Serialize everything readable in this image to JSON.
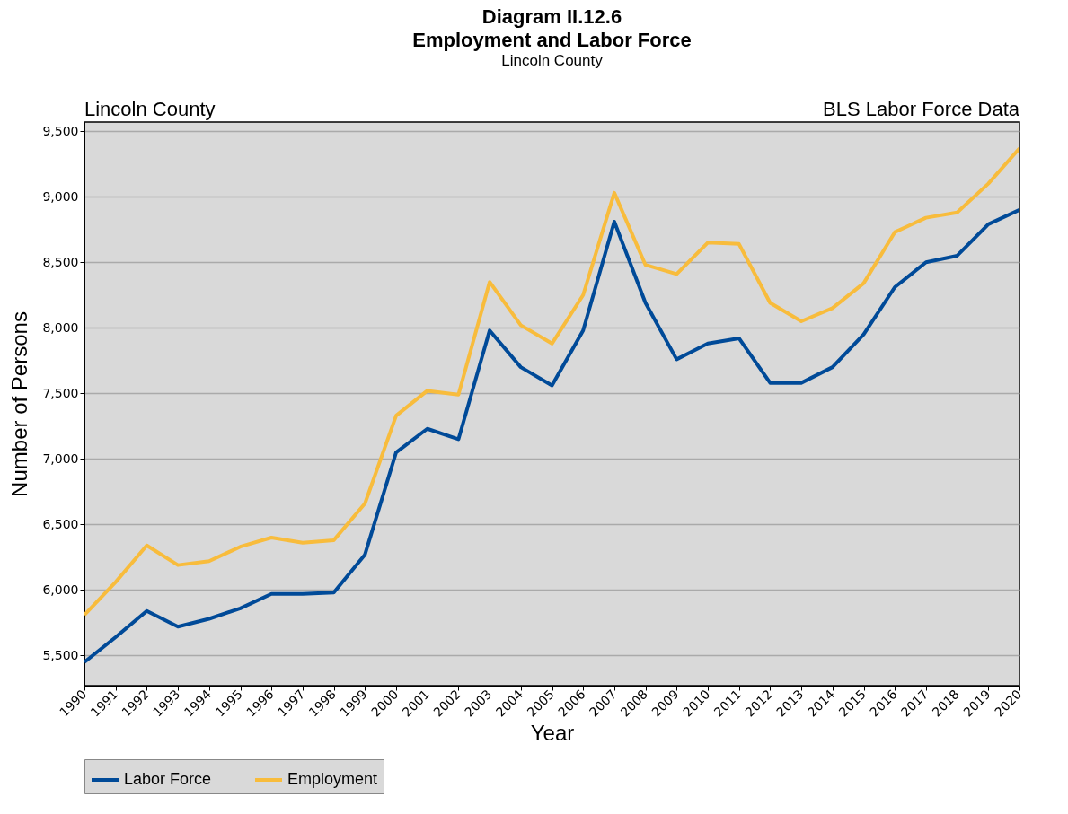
{
  "chart_data": {
    "type": "line",
    "title": "Diagram II.12.6\nEmployment and Labor Force",
    "subtitle": "Lincoln County",
    "xlabel": "Year",
    "ylabel": "Number of Persons",
    "annotations": [
      "Lincoln County",
      "BLS Labor Force Data"
    ],
    "x": [
      1990,
      1991,
      1992,
      1993,
      1994,
      1995,
      1996,
      1997,
      1998,
      1999,
      2000,
      2001,
      2002,
      2003,
      2004,
      2005,
      2006,
      2007,
      2008,
      2009,
      2010,
      2011,
      2012,
      2013,
      2014,
      2015,
      2016,
      2017,
      2018,
      2019,
      2020
    ],
    "series": [
      {
        "name": "Labor Force",
        "color": "#004a98",
        "values": [
          5450,
          5640,
          5840,
          5720,
          5780,
          5860,
          5970,
          5970,
          5980,
          6270,
          7050,
          7230,
          7150,
          7980,
          7700,
          7560,
          7980,
          8810,
          8190,
          7760,
          7880,
          7920,
          7580,
          7580,
          7700,
          7950,
          8310,
          8500,
          8550,
          8790,
          8900
        ]
      },
      {
        "name": "Employment",
        "color": "#f8bc3c",
        "values": [
          5810,
          6060,
          6340,
          6190,
          6220,
          6330,
          6400,
          6360,
          6380,
          6660,
          7330,
          7520,
          7490,
          8350,
          8020,
          7880,
          8250,
          9030,
          8480,
          8410,
          8650,
          8640,
          8190,
          8050,
          8150,
          8340,
          8730,
          8840,
          8880,
          9100,
          9370
        ]
      }
    ],
    "xlim": [
      1990,
      2020
    ],
    "xticks": [
      1990,
      1991,
      1992,
      1993,
      1994,
      1995,
      1996,
      1997,
      1998,
      1999,
      2000,
      2001,
      2002,
      2003,
      2004,
      2005,
      2006,
      2007,
      2008,
      2009,
      2010,
      2011,
      2012,
      2013,
      2014,
      2015,
      2016,
      2017,
      2018,
      2019,
      2020
    ],
    "ylim": [
      5270,
      9570
    ],
    "yticks": [
      {
        "value": 5500,
        "label": "5,500"
      },
      {
        "value": 6000,
        "label": "6,000"
      },
      {
        "value": 6500,
        "label": "6,500"
      },
      {
        "value": 7000,
        "label": "7,000"
      },
      {
        "value": 7500,
        "label": "7,500"
      },
      {
        "value": 8000,
        "label": "8,000"
      },
      {
        "value": 8500,
        "label": "8,500"
      },
      {
        "value": 9000,
        "label": "9,000"
      },
      {
        "value": 9500,
        "label": "9,500"
      }
    ],
    "grid": "y",
    "legend": "bottom",
    "line_style": "solid",
    "marker": "none"
  }
}
